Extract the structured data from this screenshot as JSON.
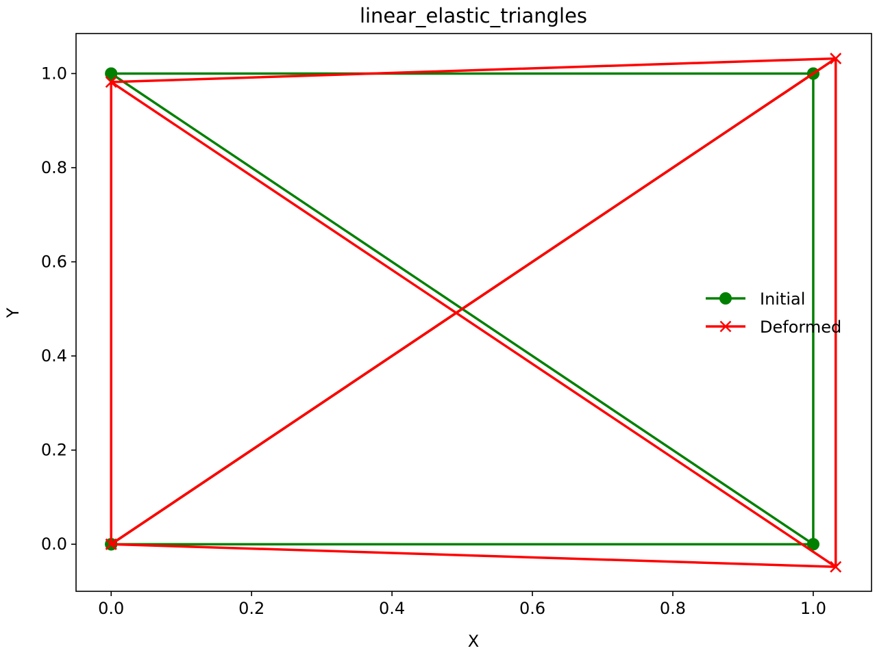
{
  "chart_data": {
    "type": "line",
    "title": "linear_elastic_triangles",
    "xlabel": "X",
    "ylabel": "Y",
    "xlim": [
      -0.05,
      1.083
    ],
    "ylim": [
      -0.1,
      1.085
    ],
    "xticks": [
      0.0,
      0.2,
      0.4,
      0.6,
      0.8,
      1.0
    ],
    "yticks": [
      0.0,
      0.2,
      0.4,
      0.6,
      0.8,
      1.0
    ],
    "xtick_labels": [
      "0.0",
      "0.2",
      "0.4",
      "0.6",
      "0.8",
      "1.0"
    ],
    "ytick_labels": [
      "0.0",
      "0.2",
      "0.4",
      "0.6",
      "0.8",
      "1.0"
    ],
    "grid": false,
    "legend_position": "center-right",
    "series": [
      {
        "name": "Initial",
        "color": "#008000",
        "marker": "circle",
        "segments": [
          {
            "x": [
              0.0,
              1.0,
              1.0,
              0.0
            ],
            "y": [
              0.0,
              0.0,
              1.0,
              0.0
            ]
          },
          {
            "x": [
              0.0,
              1.0,
              0.0,
              0.0
            ],
            "y": [
              0.0,
              1.0,
              1.0,
              0.0
            ]
          },
          {
            "x": [
              1.0,
              0.0
            ],
            "y": [
              0.0,
              1.0
            ]
          }
        ]
      },
      {
        "name": "Deformed",
        "color": "#ff0000",
        "marker": "x",
        "segments": [
          {
            "x": [
              0.0,
              1.032,
              1.032,
              0.0
            ],
            "y": [
              0.0,
              -0.048,
              1.032,
              0.0
            ]
          },
          {
            "x": [
              0.0,
              1.032,
              0.0,
              0.0
            ],
            "y": [
              0.0,
              1.032,
              0.982,
              0.0
            ]
          },
          {
            "x": [
              1.032,
              0.0
            ],
            "y": [
              -0.048,
              0.982
            ]
          }
        ]
      }
    ]
  }
}
